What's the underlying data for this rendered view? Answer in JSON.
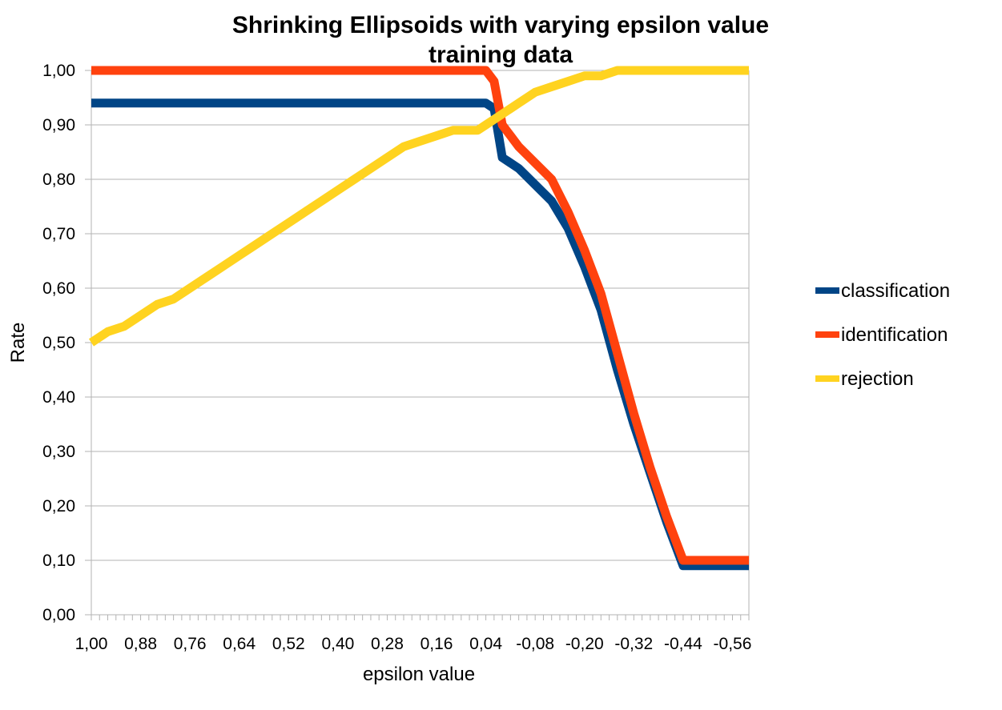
{
  "chart_data": {
    "type": "line",
    "title": "Shrinking Ellipsoids with varying epsilon value",
    "subtitle": "training data",
    "xlabel": "epsilon value",
    "ylabel": "Rate",
    "ylim": [
      0,
      1
    ],
    "y_ticks": [
      "0,00",
      "0,10",
      "0,20",
      "0,30",
      "0,40",
      "0,50",
      "0,60",
      "0,70",
      "0,80",
      "0,90",
      "1,00"
    ],
    "x_tick_labels": [
      "1,00",
      "0,88",
      "0,76",
      "0,64",
      "0,52",
      "0,40",
      "0,28",
      "0,16",
      "0,04",
      "-0,08",
      "-0,20",
      "-0,32",
      "-0,44",
      "-0,56"
    ],
    "grid": true,
    "legend_position": "right",
    "x": [
      1.0,
      0.96,
      0.92,
      0.88,
      0.84,
      0.8,
      0.76,
      0.72,
      0.68,
      0.64,
      0.6,
      0.56,
      0.52,
      0.48,
      0.44,
      0.4,
      0.36,
      0.32,
      0.28,
      0.24,
      0.2,
      0.16,
      0.12,
      0.08,
      0.06,
      0.04,
      0.02,
      0.0,
      -0.02,
      -0.04,
      -0.08,
      -0.12,
      -0.16,
      -0.2,
      -0.24,
      -0.28,
      -0.32,
      -0.36,
      -0.4,
      -0.44,
      -0.48,
      -0.52,
      -0.56,
      -0.6
    ],
    "series": [
      {
        "name": "classification",
        "color": "#004586",
        "values": [
          0.94,
          0.94,
          0.94,
          0.94,
          0.94,
          0.94,
          0.94,
          0.94,
          0.94,
          0.94,
          0.94,
          0.94,
          0.94,
          0.94,
          0.94,
          0.94,
          0.94,
          0.94,
          0.94,
          0.94,
          0.94,
          0.94,
          0.94,
          0.94,
          0.94,
          0.94,
          0.93,
          0.84,
          0.83,
          0.82,
          0.79,
          0.76,
          0.71,
          0.64,
          0.56,
          0.45,
          0.35,
          0.26,
          0.17,
          0.09,
          0.09,
          0.09,
          0.09,
          0.09
        ]
      },
      {
        "name": "identification",
        "color": "#ff420e",
        "values": [
          1.0,
          1.0,
          1.0,
          1.0,
          1.0,
          1.0,
          1.0,
          1.0,
          1.0,
          1.0,
          1.0,
          1.0,
          1.0,
          1.0,
          1.0,
          1.0,
          1.0,
          1.0,
          1.0,
          1.0,
          1.0,
          1.0,
          1.0,
          1.0,
          1.0,
          1.0,
          0.98,
          0.9,
          0.88,
          0.86,
          0.83,
          0.8,
          0.74,
          0.67,
          0.59,
          0.48,
          0.37,
          0.27,
          0.18,
          0.1,
          0.1,
          0.1,
          0.1,
          0.1
        ]
      },
      {
        "name": "rejection",
        "color": "#ffd320",
        "values": [
          0.5,
          0.52,
          0.53,
          0.55,
          0.57,
          0.58,
          0.6,
          0.62,
          0.64,
          0.66,
          0.68,
          0.7,
          0.72,
          0.74,
          0.76,
          0.78,
          0.8,
          0.82,
          0.84,
          0.86,
          0.87,
          0.88,
          0.89,
          0.89,
          0.89,
          0.9,
          0.91,
          0.92,
          0.93,
          0.94,
          0.96,
          0.97,
          0.98,
          0.99,
          0.99,
          1.0,
          1.0,
          1.0,
          1.0,
          1.0,
          1.0,
          1.0,
          1.0,
          1.0
        ]
      }
    ]
  }
}
